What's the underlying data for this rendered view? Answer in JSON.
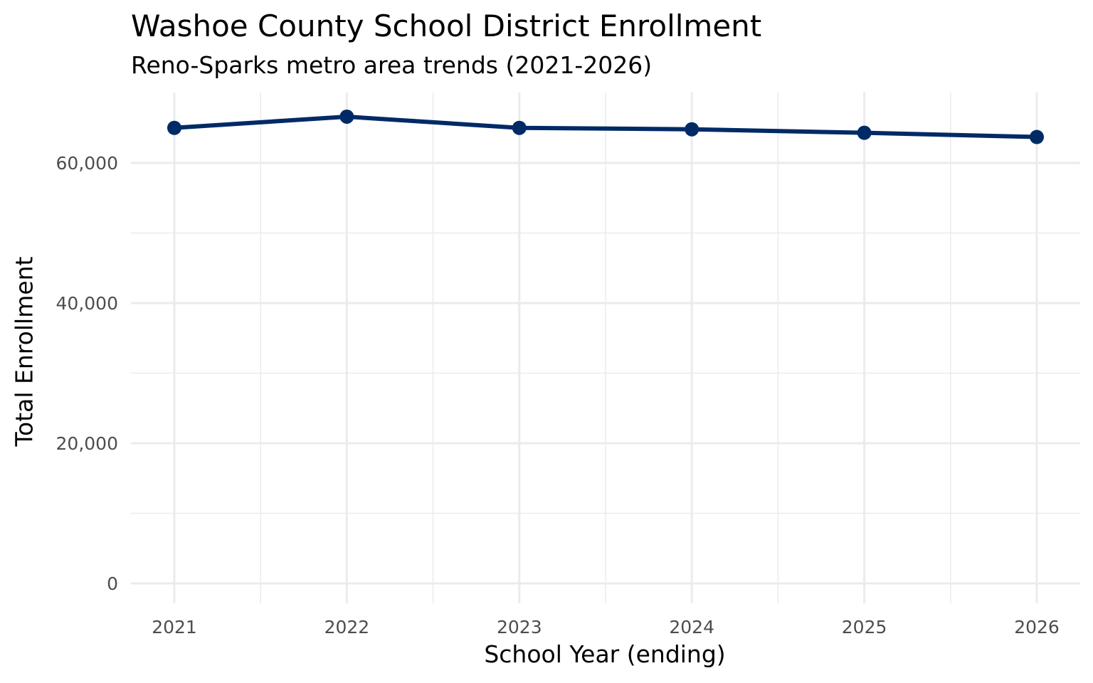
{
  "chart": {
    "title": "Washoe County School District Enrollment",
    "subtitle": "Reno-Sparks metro area trends (2021-2026)",
    "xlabel": "School Year (ending)",
    "ylabel": "Total Enrollment",
    "line_color": "#002A66"
  },
  "chart_data": {
    "type": "line",
    "title": "Washoe County School District Enrollment",
    "subtitle": "Reno-Sparks metro area trends (2021-2026)",
    "xlabel": "School Year (ending)",
    "ylabel": "Total Enrollment",
    "x": [
      2021,
      2022,
      2023,
      2024,
      2025,
      2026
    ],
    "series": [
      {
        "name": "Total Enrollment",
        "values": [
          65000,
          66600,
          65000,
          64800,
          64300,
          63700
        ],
        "color": "#002A66"
      }
    ],
    "x_ticks": [
      "2021",
      "2022",
      "2023",
      "2024",
      "2025",
      "2026"
    ],
    "y_ticks": [
      "0",
      "20,000",
      "40,000",
      "60,000"
    ],
    "ylim": [
      0,
      66600
    ],
    "grid": true,
    "legend": "none"
  }
}
